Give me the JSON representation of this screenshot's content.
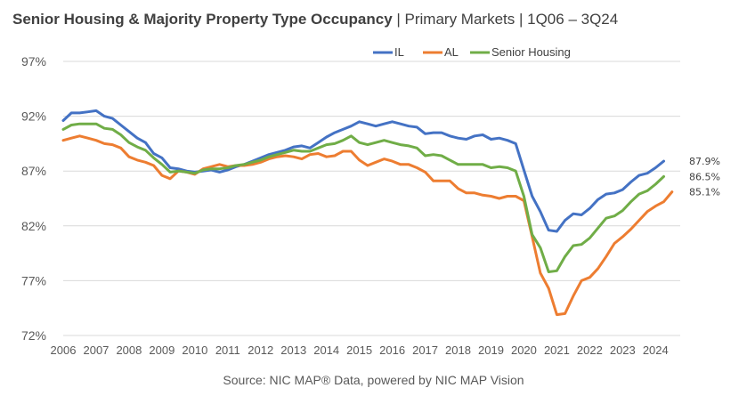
{
  "header": {
    "title_bold": "Senior Housing & Majority Property Type Occupancy",
    "title_rest": " | Primary Markets | 1Q06 – 3Q24"
  },
  "footer": {
    "source": "Source: NIC MAP® Data, powered by NIC MAP Vision"
  },
  "chart_data": {
    "type": "line",
    "title": "Senior Housing & Majority Property Type Occupancy | Primary Markets | 1Q06 – 3Q24",
    "ylim": [
      72,
      97
    ],
    "yticks": [
      "72%",
      "77%",
      "82%",
      "87%",
      "92%",
      "97%"
    ],
    "ytick_values": [
      72,
      77,
      82,
      87,
      92,
      97
    ],
    "xlim": [
      2006,
      2024.75
    ],
    "xticks": [
      "2006",
      "2007",
      "2008",
      "2009",
      "2010",
      "2011",
      "2012",
      "2013",
      "2014",
      "2015",
      "2016",
      "2017",
      "2018",
      "2019",
      "2020",
      "2021",
      "2022",
      "2023",
      "2024"
    ],
    "grid": "horizontal",
    "legend_position": "top-center",
    "series": [
      {
        "name": "IL",
        "color": "#4472C4",
        "end_label": "87.9%",
        "points": [
          [
            2006,
            91.6
          ],
          [
            2006.25,
            92.3
          ],
          [
            2006.5,
            92.3
          ],
          [
            2006.75,
            92.4
          ],
          [
            2007,
            92.5
          ],
          [
            2007.25,
            92.0
          ],
          [
            2007.5,
            91.8
          ],
          [
            2007.75,
            91.2
          ],
          [
            2008,
            90.6
          ],
          [
            2008.25,
            90.0
          ],
          [
            2008.5,
            89.6
          ],
          [
            2008.75,
            88.6
          ],
          [
            2009,
            88.2
          ],
          [
            2009.25,
            87.3
          ],
          [
            2009.5,
            87.2
          ],
          [
            2009.75,
            87.0
          ],
          [
            2010,
            86.9
          ],
          [
            2010.25,
            87.0
          ],
          [
            2010.5,
            87.1
          ],
          [
            2010.75,
            86.9
          ],
          [
            2011,
            87.1
          ],
          [
            2011.25,
            87.4
          ],
          [
            2011.5,
            87.6
          ],
          [
            2011.75,
            87.9
          ],
          [
            2012,
            88.2
          ],
          [
            2012.25,
            88.5
          ],
          [
            2012.75,
            88.9
          ],
          [
            2013,
            89.2
          ],
          [
            2013.25,
            89.3
          ],
          [
            2013.5,
            89.1
          ],
          [
            2013.75,
            89.6
          ],
          [
            2014,
            90.1
          ],
          [
            2014.25,
            90.5
          ],
          [
            2014.5,
            90.8
          ],
          [
            2014.75,
            91.1
          ],
          [
            2015,
            91.5
          ],
          [
            2015.25,
            91.3
          ],
          [
            2015.5,
            91.1
          ],
          [
            2015.75,
            91.3
          ],
          [
            2016,
            91.5
          ],
          [
            2016.25,
            91.3
          ],
          [
            2016.5,
            91.1
          ],
          [
            2016.75,
            91.0
          ],
          [
            2017,
            90.4
          ],
          [
            2017.25,
            90.5
          ],
          [
            2017.5,
            90.5
          ],
          [
            2017.75,
            90.2
          ],
          [
            2018,
            90.0
          ],
          [
            2018.25,
            89.9
          ],
          [
            2018.5,
            90.2
          ],
          [
            2018.75,
            90.3
          ],
          [
            2019,
            89.9
          ],
          [
            2019.25,
            90.0
          ],
          [
            2019.5,
            89.8
          ],
          [
            2019.75,
            89.5
          ],
          [
            2020,
            87.1
          ],
          [
            2020.25,
            84.7
          ],
          [
            2020.5,
            83.3
          ],
          [
            2020.75,
            81.6
          ],
          [
            2021,
            81.5
          ],
          [
            2021.25,
            82.5
          ],
          [
            2021.5,
            83.1
          ],
          [
            2021.75,
            83.0
          ],
          [
            2022,
            83.6
          ],
          [
            2022.25,
            84.4
          ],
          [
            2022.5,
            84.9
          ],
          [
            2022.75,
            85.0
          ],
          [
            2023,
            85.3
          ],
          [
            2023.25,
            86.0
          ],
          [
            2023.5,
            86.6
          ],
          [
            2023.75,
            86.8
          ],
          [
            2024,
            87.3
          ],
          [
            2024.25,
            87.9
          ]
        ]
      },
      {
        "name": "AL",
        "color": "#ED7D31",
        "end_label": "85.1%",
        "points": [
          [
            2006,
            89.8
          ],
          [
            2006.25,
            90.0
          ],
          [
            2006.5,
            90.2
          ],
          [
            2006.75,
            90.0
          ],
          [
            2007,
            89.8
          ],
          [
            2007.25,
            89.5
          ],
          [
            2007.5,
            89.4
          ],
          [
            2007.75,
            89.1
          ],
          [
            2008,
            88.3
          ],
          [
            2008.25,
            88.0
          ],
          [
            2008.5,
            87.8
          ],
          [
            2008.75,
            87.5
          ],
          [
            2009,
            86.6
          ],
          [
            2009.25,
            86.3
          ],
          [
            2009.5,
            87.0
          ],
          [
            2009.75,
            86.9
          ],
          [
            2010,
            86.7
          ],
          [
            2010.25,
            87.2
          ],
          [
            2010.5,
            87.4
          ],
          [
            2010.75,
            87.6
          ],
          [
            2011,
            87.4
          ],
          [
            2011.25,
            87.5
          ],
          [
            2011.5,
            87.5
          ],
          [
            2011.75,
            87.6
          ],
          [
            2012,
            87.8
          ],
          [
            2012.25,
            88.1
          ],
          [
            2012.5,
            88.3
          ],
          [
            2012.75,
            88.4
          ],
          [
            2013,
            88.3
          ],
          [
            2013.25,
            88.1
          ],
          [
            2013.5,
            88.5
          ],
          [
            2013.75,
            88.6
          ],
          [
            2014,
            88.3
          ],
          [
            2014.25,
            88.4
          ],
          [
            2014.5,
            88.8
          ],
          [
            2014.75,
            88.8
          ],
          [
            2015,
            88.0
          ],
          [
            2015.25,
            87.5
          ],
          [
            2015.5,
            87.8
          ],
          [
            2015.75,
            88.1
          ],
          [
            2016,
            87.9
          ],
          [
            2016.25,
            87.6
          ],
          [
            2016.5,
            87.6
          ],
          [
            2016.75,
            87.3
          ],
          [
            2017,
            86.9
          ],
          [
            2017.25,
            86.1
          ],
          [
            2017.5,
            86.1
          ],
          [
            2017.75,
            86.1
          ],
          [
            2018,
            85.4
          ],
          [
            2018.25,
            85.0
          ],
          [
            2018.5,
            85.0
          ],
          [
            2018.75,
            84.8
          ],
          [
            2019,
            84.7
          ],
          [
            2019.25,
            84.5
          ],
          [
            2019.5,
            84.7
          ],
          [
            2019.75,
            84.7
          ],
          [
            2020,
            84.3
          ],
          [
            2020.25,
            81.0
          ],
          [
            2020.5,
            77.7
          ],
          [
            2020.75,
            76.3
          ],
          [
            2021,
            73.9
          ],
          [
            2021.25,
            74.0
          ],
          [
            2021.5,
            75.6
          ],
          [
            2021.75,
            77.0
          ],
          [
            2022,
            77.3
          ],
          [
            2022.25,
            78.1
          ],
          [
            2022.5,
            79.2
          ],
          [
            2022.75,
            80.4
          ],
          [
            2023,
            81.0
          ],
          [
            2023.25,
            81.7
          ],
          [
            2023.5,
            82.5
          ],
          [
            2023.75,
            83.3
          ],
          [
            2024,
            83.8
          ],
          [
            2024.25,
            84.2
          ],
          [
            2024.5,
            85.1
          ]
        ]
      },
      {
        "name": "Senior Housing",
        "color": "#70AD47",
        "end_label": "86.5%",
        "points": [
          [
            2006,
            90.8
          ],
          [
            2006.25,
            91.2
          ],
          [
            2006.5,
            91.3
          ],
          [
            2006.75,
            91.3
          ],
          [
            2007,
            91.3
          ],
          [
            2007.25,
            90.9
          ],
          [
            2007.5,
            90.8
          ],
          [
            2007.75,
            90.3
          ],
          [
            2008,
            89.6
          ],
          [
            2008.25,
            89.2
          ],
          [
            2008.5,
            88.9
          ],
          [
            2008.75,
            88.2
          ],
          [
            2009,
            87.6
          ],
          [
            2009.25,
            86.9
          ],
          [
            2009.5,
            87.0
          ],
          [
            2009.75,
            86.9
          ],
          [
            2010,
            86.8
          ],
          [
            2010.25,
            87.1
          ],
          [
            2010.5,
            87.2
          ],
          [
            2010.75,
            87.2
          ],
          [
            2011,
            87.3
          ],
          [
            2011.25,
            87.5
          ],
          [
            2011.5,
            87.6
          ],
          [
            2011.75,
            87.8
          ],
          [
            2012,
            88.0
          ],
          [
            2012.25,
            88.3
          ],
          [
            2012.5,
            88.5
          ],
          [
            2012.75,
            88.7
          ],
          [
            2013,
            88.9
          ],
          [
            2013.25,
            88.8
          ],
          [
            2013.5,
            88.8
          ],
          [
            2013.75,
            89.1
          ],
          [
            2014,
            89.4
          ],
          [
            2014.25,
            89.5
          ],
          [
            2014.5,
            89.8
          ],
          [
            2014.75,
            90.2
          ],
          [
            2015,
            89.6
          ],
          [
            2015.25,
            89.4
          ],
          [
            2015.5,
            89.6
          ],
          [
            2015.75,
            89.8
          ],
          [
            2016,
            89.6
          ],
          [
            2016.25,
            89.4
          ],
          [
            2016.5,
            89.3
          ],
          [
            2016.75,
            89.1
          ],
          [
            2017,
            88.4
          ],
          [
            2017.25,
            88.5
          ],
          [
            2017.5,
            88.4
          ],
          [
            2017.75,
            88.0
          ],
          [
            2018,
            87.6
          ],
          [
            2018.25,
            87.6
          ],
          [
            2018.5,
            87.6
          ],
          [
            2018.75,
            87.6
          ],
          [
            2019,
            87.3
          ],
          [
            2019.25,
            87.4
          ],
          [
            2019.5,
            87.3
          ],
          [
            2019.75,
            87.0
          ],
          [
            2020,
            84.7
          ],
          [
            2020.25,
            81.2
          ],
          [
            2020.5,
            80.0
          ],
          [
            2020.75,
            77.8
          ],
          [
            2021,
            77.9
          ],
          [
            2021.25,
            79.2
          ],
          [
            2021.5,
            80.2
          ],
          [
            2021.75,
            80.3
          ],
          [
            2022,
            80.9
          ],
          [
            2022.25,
            81.8
          ],
          [
            2022.5,
            82.7
          ],
          [
            2022.75,
            82.9
          ],
          [
            2023,
            83.4
          ],
          [
            2023.25,
            84.2
          ],
          [
            2023.5,
            84.9
          ],
          [
            2023.75,
            85.2
          ],
          [
            2024,
            85.8
          ],
          [
            2024.25,
            86.5
          ]
        ]
      }
    ]
  }
}
